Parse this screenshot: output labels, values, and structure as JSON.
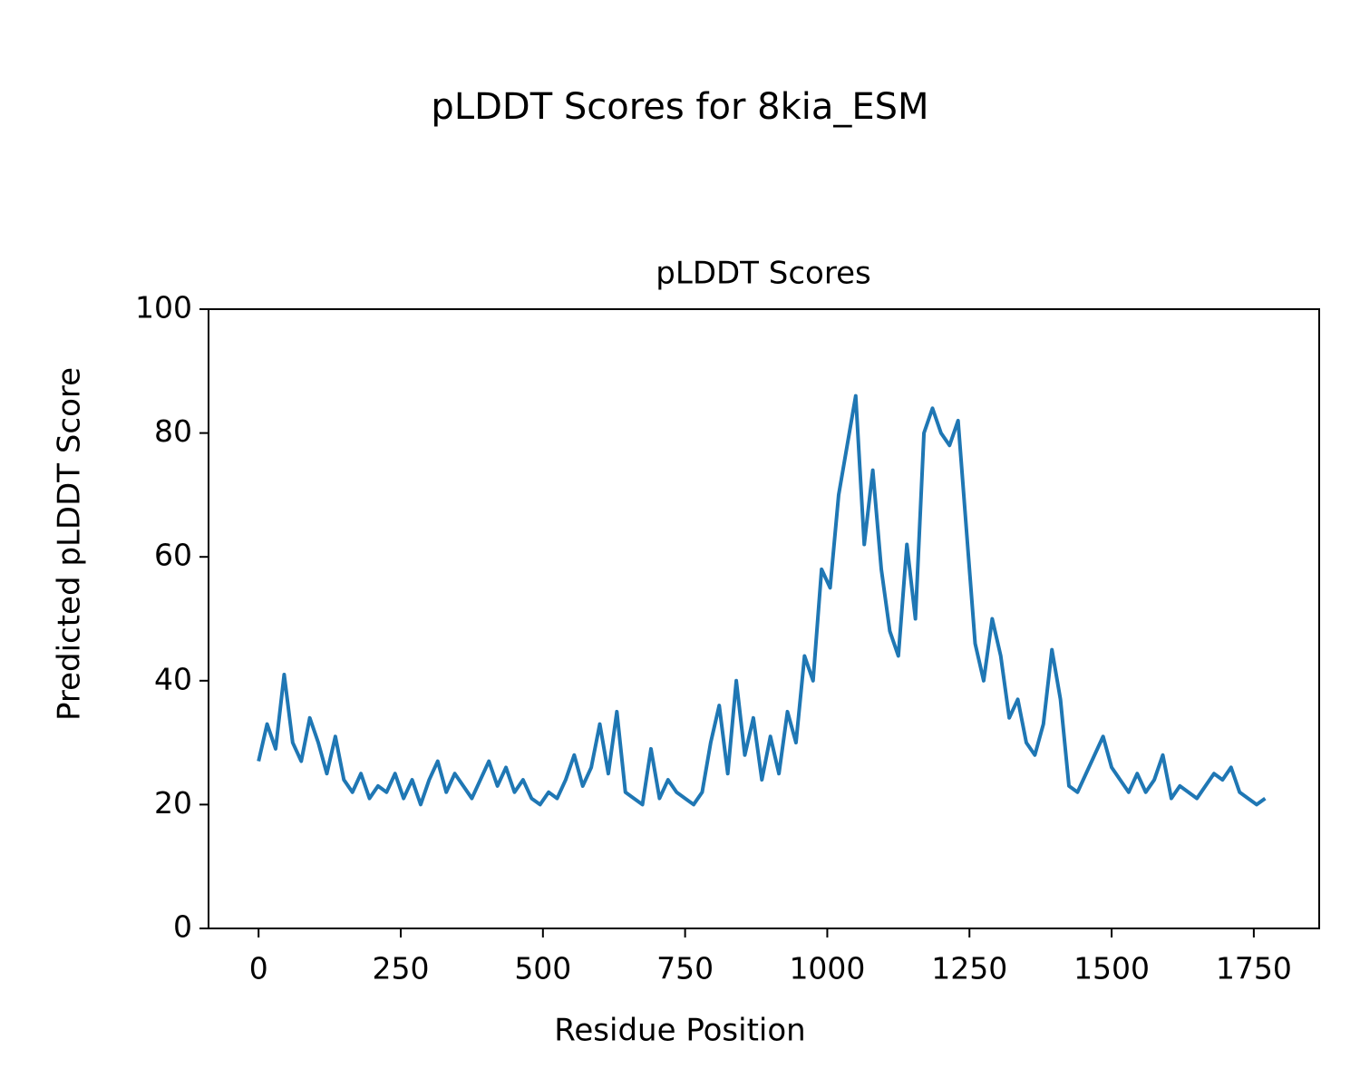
{
  "chart_data": {
    "type": "line",
    "suptitle": "pLDDT Scores for 8kia_ESM",
    "title": "pLDDT Scores",
    "xlabel": "Residue Position",
    "ylabel": "Predicted pLDDT Score",
    "x": [
      0,
      15,
      30,
      45,
      60,
      75,
      90,
      105,
      120,
      135,
      150,
      165,
      180,
      195,
      210,
      225,
      240,
      255,
      270,
      285,
      300,
      315,
      330,
      345,
      360,
      375,
      390,
      405,
      420,
      435,
      450,
      465,
      480,
      495,
      510,
      525,
      540,
      555,
      570,
      585,
      600,
      615,
      630,
      645,
      660,
      675,
      690,
      705,
      720,
      735,
      750,
      765,
      780,
      795,
      810,
      825,
      840,
      855,
      870,
      885,
      900,
      915,
      930,
      945,
      960,
      975,
      990,
      1005,
      1020,
      1035,
      1050,
      1065,
      1080,
      1095,
      1110,
      1125,
      1140,
      1155,
      1170,
      1185,
      1200,
      1215,
      1230,
      1245,
      1260,
      1275,
      1290,
      1305,
      1320,
      1335,
      1350,
      1365,
      1380,
      1395,
      1410,
      1425,
      1440,
      1455,
      1470,
      1485,
      1500,
      1515,
      1530,
      1545,
      1560,
      1575,
      1590,
      1605,
      1620,
      1635,
      1650,
      1665,
      1680,
      1695,
      1710,
      1725,
      1740,
      1755,
      1770
    ],
    "series": [
      {
        "color": "#1f77b4",
        "values": [
          27,
          33,
          29,
          41,
          30,
          27,
          34,
          30,
          25,
          31,
          24,
          22,
          25,
          21,
          23,
          22,
          25,
          21,
          24,
          20,
          24,
          27,
          22,
          25,
          23,
          21,
          24,
          27,
          23,
          26,
          22,
          24,
          21,
          20,
          22,
          21,
          24,
          28,
          23,
          26,
          33,
          25,
          35,
          22,
          21,
          20,
          29,
          21,
          24,
          22,
          21,
          20,
          22,
          30,
          36,
          25,
          40,
          28,
          34,
          24,
          31,
          25,
          35,
          30,
          44,
          40,
          58,
          55,
          70,
          78,
          86,
          62,
          74,
          58,
          48,
          44,
          62,
          50,
          80,
          84,
          80,
          78,
          82,
          64,
          46,
          40,
          50,
          44,
          34,
          37,
          30,
          28,
          33,
          45,
          37,
          23,
          22,
          25,
          28,
          31,
          26,
          24,
          22,
          25,
          22,
          24,
          28,
          21,
          23,
          22,
          21,
          23,
          25,
          24,
          26,
          22,
          21,
          20,
          21
        ]
      }
    ],
    "xlim": [
      -88,
      1865
    ],
    "ylim": [
      0,
      100
    ],
    "xticks": [
      0,
      250,
      500,
      750,
      1000,
      1250,
      1500,
      1750
    ],
    "yticks": [
      0,
      20,
      40,
      60,
      80,
      100
    ]
  }
}
